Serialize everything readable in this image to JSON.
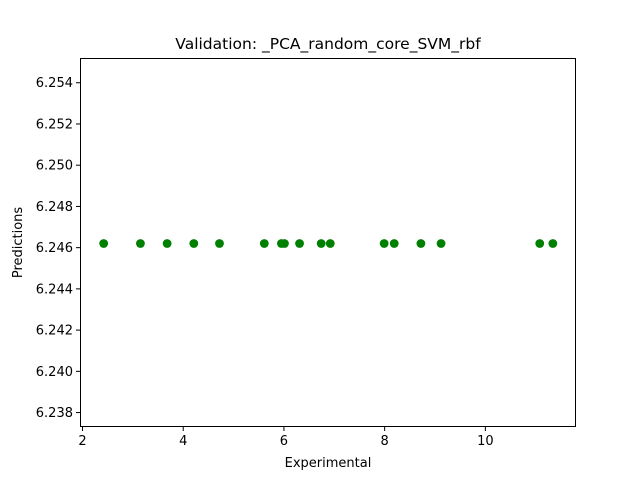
{
  "chart_data": {
    "type": "scatter",
    "title": "Validation: _PCA_random_core_SVM_rbf",
    "xlabel": "Experimental",
    "ylabel": "Predictions",
    "xlim": [
      1.95,
      11.8
    ],
    "ylim": [
      6.2373,
      6.2552
    ],
    "xticks": [
      2,
      4,
      6,
      8,
      10
    ],
    "xtick_labels": [
      "2",
      "4",
      "6",
      "8",
      "10"
    ],
    "yticks": [
      6.238,
      6.24,
      6.242,
      6.244,
      6.246,
      6.248,
      6.25,
      6.252,
      6.254
    ],
    "ytick_labels": [
      "6.238",
      "6.240",
      "6.242",
      "6.244",
      "6.246",
      "6.248",
      "6.250",
      "6.252",
      "6.254"
    ],
    "grid": false,
    "marker_color": "#008000",
    "series": [
      {
        "x": [
          2.42,
          3.15,
          3.68,
          4.21,
          4.72,
          5.61,
          5.95,
          6.01,
          6.31,
          6.74,
          6.92,
          7.99,
          8.19,
          8.72,
          9.12,
          11.08,
          11.34
        ],
        "y": [
          6.2462,
          6.2462,
          6.2462,
          6.2462,
          6.2462,
          6.2462,
          6.2462,
          6.2462,
          6.2462,
          6.2462,
          6.2462,
          6.2462,
          6.2462,
          6.2462,
          6.2462,
          6.2462,
          6.2462
        ]
      }
    ]
  }
}
